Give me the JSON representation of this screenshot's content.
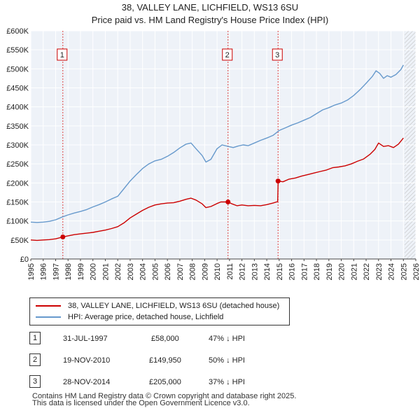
{
  "header": {
    "title": "38, VALLEY LANE, LICHFIELD, WS13 6SU",
    "subtitle": "Price paid vs. HM Land Registry's House Price Index (HPI)"
  },
  "chart_data": {
    "type": "line",
    "title": "38, VALLEY LANE, LICHFIELD, WS13 6SU",
    "subtitle": "Price paid vs. HM Land Registry's House Price Index (HPI)",
    "xlabel": "",
    "ylabel": "",
    "xlim": [
      1995,
      2026
    ],
    "ylim": [
      0,
      600000
    ],
    "y_ticks": [
      {
        "value": 0,
        "label": "£0"
      },
      {
        "value": 50000,
        "label": "£50K"
      },
      {
        "value": 100000,
        "label": "£100K"
      },
      {
        "value": 150000,
        "label": "£150K"
      },
      {
        "value": 200000,
        "label": "£200K"
      },
      {
        "value": 250000,
        "label": "£250K"
      },
      {
        "value": 300000,
        "label": "£300K"
      },
      {
        "value": 350000,
        "label": "£350K"
      },
      {
        "value": 400000,
        "label": "£400K"
      },
      {
        "value": 450000,
        "label": "£450K"
      },
      {
        "value": 500000,
        "label": "£500K"
      },
      {
        "value": 550000,
        "label": "£550K"
      },
      {
        "value": 600000,
        "label": "£600K"
      }
    ],
    "x_ticks": [
      "1995",
      "1996",
      "1997",
      "1998",
      "1999",
      "2000",
      "2001",
      "2002",
      "2003",
      "2004",
      "2005",
      "2006",
      "2007",
      "2008",
      "2009",
      "2010",
      "2011",
      "2012",
      "2013",
      "2014",
      "2015",
      "2016",
      "2017",
      "2018",
      "2019",
      "2020",
      "2021",
      "2022",
      "2023",
      "2024",
      "2025",
      "2026"
    ],
    "grid": true,
    "forecast_start": 2025.1,
    "series": [
      {
        "name": "38, VALLEY LANE, LICHFIELD, WS13 6SU (detached house)",
        "color": "#cc0000",
        "x": [
          1995.0,
          1995.5,
          1996.0,
          1996.5,
          1997.0,
          1997.58,
          1998.0,
          1998.5,
          1999.0,
          1999.5,
          2000.0,
          2000.5,
          2001.0,
          2001.5,
          2002.0,
          2002.5,
          2003.0,
          2003.5,
          2004.0,
          2004.5,
          2005.0,
          2005.5,
          2006.0,
          2006.5,
          2007.0,
          2007.5,
          2007.9,
          2008.3,
          2008.8,
          2009.1,
          2009.5,
          2010.0,
          2010.3,
          2010.88,
          2011.2,
          2011.6,
          2012.0,
          2012.5,
          2013.0,
          2013.5,
          2014.0,
          2014.5,
          2014.88,
          2014.92,
          2015.3,
          2015.8,
          2016.3,
          2016.8,
          2017.3,
          2017.8,
          2018.3,
          2018.8,
          2019.3,
          2019.8,
          2020.3,
          2020.8,
          2021.3,
          2021.8,
          2022.3,
          2022.7,
          2023.0,
          2023.4,
          2023.8,
          2024.2,
          2024.6,
          2025.0
        ],
        "values": [
          50000,
          49000,
          50000,
          51000,
          53000,
          58000,
          61000,
          64000,
          66000,
          68000,
          70000,
          73000,
          76000,
          80000,
          85000,
          95000,
          108000,
          118000,
          128000,
          136000,
          142000,
          145000,
          147000,
          148000,
          152000,
          157000,
          160000,
          155000,
          145000,
          135000,
          138000,
          146000,
          150000,
          149950,
          145000,
          140000,
          142000,
          140000,
          141000,
          140000,
          143000,
          147000,
          151000,
          205000,
          203000,
          210000,
          213000,
          218000,
          222000,
          226000,
          230000,
          234000,
          240000,
          242000,
          245000,
          250000,
          257000,
          263000,
          275000,
          288000,
          305000,
          296000,
          298000,
          293000,
          302000,
          318000
        ]
      },
      {
        "name": "HPI: Average price, detached house, Lichfield",
        "color": "#6699cc",
        "x": [
          1995.0,
          1995.5,
          1996.0,
          1996.5,
          1997.0,
          1997.5,
          1998.0,
          1998.5,
          1999.0,
          1999.5,
          2000.0,
          2000.5,
          2001.0,
          2001.5,
          2002.0,
          2002.5,
          2003.0,
          2003.5,
          2004.0,
          2004.5,
          2005.0,
          2005.5,
          2006.0,
          2006.5,
          2007.0,
          2007.5,
          2007.9,
          2008.3,
          2008.8,
          2009.1,
          2009.5,
          2010.0,
          2010.4,
          2010.9,
          2011.3,
          2011.7,
          2012.1,
          2012.5,
          2013.0,
          2013.5,
          2014.0,
          2014.5,
          2015.0,
          2015.5,
          2016.0,
          2016.5,
          2017.0,
          2017.5,
          2018.0,
          2018.5,
          2019.0,
          2019.5,
          2020.0,
          2020.5,
          2021.0,
          2021.5,
          2022.0,
          2022.5,
          2022.8,
          2023.1,
          2023.4,
          2023.7,
          2024.0,
          2024.4,
          2024.8,
          2025.0
        ],
        "values": [
          97000,
          96000,
          97000,
          99000,
          103000,
          110000,
          116000,
          121000,
          125000,
          130000,
          137000,
          143000,
          150000,
          158000,
          165000,
          185000,
          205000,
          222000,
          238000,
          250000,
          258000,
          262000,
          270000,
          280000,
          292000,
          302000,
          305000,
          290000,
          272000,
          255000,
          262000,
          290000,
          300000,
          296000,
          293000,
          297000,
          300000,
          298000,
          305000,
          312000,
          318000,
          325000,
          338000,
          345000,
          352000,
          358000,
          365000,
          372000,
          382000,
          392000,
          398000,
          405000,
          410000,
          418000,
          430000,
          445000,
          462000,
          480000,
          495000,
          488000,
          475000,
          482000,
          478000,
          485000,
          498000,
          510000
        ]
      }
    ],
    "annotations": [
      {
        "label": "1",
        "x": 1997.58,
        "value": 58000
      },
      {
        "label": "2",
        "x": 2010.88,
        "value": 149950
      },
      {
        "label": "3",
        "x": 2014.91,
        "value": 205000
      }
    ]
  },
  "legend": {
    "items": [
      {
        "label": "38, VALLEY LANE, LICHFIELD, WS13 6SU (detached house)",
        "color": "#cc0000"
      },
      {
        "label": "HPI: Average price, detached house, Lichfield",
        "color": "#6699cc"
      }
    ]
  },
  "sales": [
    {
      "num": "1",
      "date": "31-JUL-1997",
      "price": "£58,000",
      "hpi": "47% ↓ HPI"
    },
    {
      "num": "2",
      "date": "19-NOV-2010",
      "price": "£149,950",
      "hpi": "50% ↓ HPI"
    },
    {
      "num": "3",
      "date": "28-NOV-2014",
      "price": "£205,000",
      "hpi": "37% ↓ HPI"
    }
  ],
  "footer": {
    "line1": "Contains HM Land Registry data © Crown copyright and database right 2025.",
    "line2": "This data is licensed under the Open Government Licence v3.0."
  }
}
